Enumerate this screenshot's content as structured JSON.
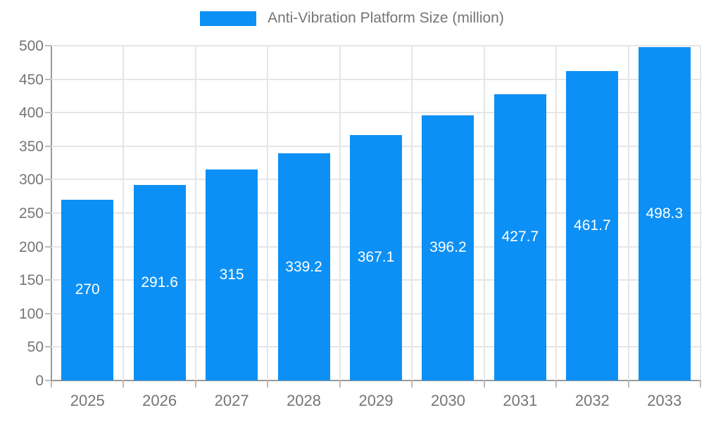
{
  "legend": {
    "label": "Anti-Vibration Platform Size (million)",
    "swatch_color": "#0d90f5",
    "text_color": "#757575"
  },
  "chart_data": {
    "type": "bar",
    "title": "",
    "xlabel": "",
    "ylabel": "",
    "categories": [
      "2025",
      "2026",
      "2027",
      "2028",
      "2029",
      "2030",
      "2031",
      "2032",
      "2033"
    ],
    "values": [
      270,
      291.6,
      315,
      339.2,
      367.1,
      396.2,
      427.7,
      461.7,
      498.3
    ],
    "value_labels": [
      "270",
      "291.6",
      "315",
      "339.2",
      "367.1",
      "396.2",
      "427.7",
      "461.7",
      "498.3"
    ],
    "series_name": "Anti-Vibration Platform Size (million)",
    "ylim": [
      0,
      500
    ],
    "ytick_step": 50,
    "ytick_labels": [
      "0",
      "50",
      "100",
      "150",
      "200",
      "250",
      "300",
      "350",
      "400",
      "450",
      "500"
    ],
    "grid": true,
    "legend_position": "top-center",
    "colors": {
      "bar": "#0d90f5",
      "gridline": "#e6e6e6",
      "axis_line": "#999999",
      "tick_mark": "#bbbbbb",
      "tick_label": "#757575",
      "data_label": "#ffffff"
    }
  }
}
